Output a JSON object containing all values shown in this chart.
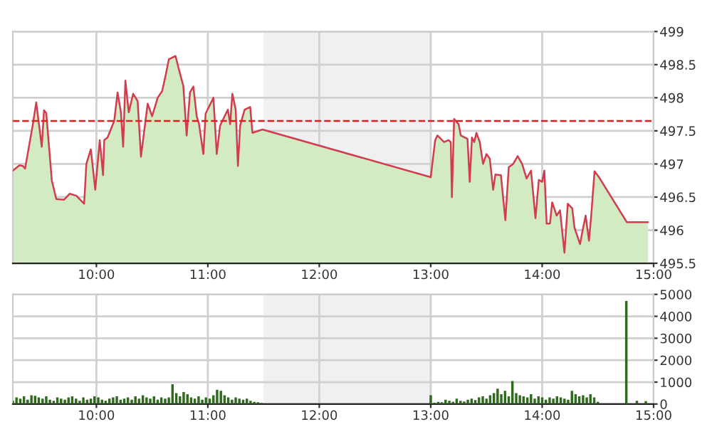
{
  "chart_data": [
    {
      "type": "area",
      "xlim": [
        9.25,
        15.0
      ],
      "xticks": [
        {
          "value": 10,
          "label": "10:00"
        },
        {
          "value": 11,
          "label": "11:00"
        },
        {
          "value": 12,
          "label": "12:00"
        },
        {
          "value": 13,
          "label": "13:00"
        },
        {
          "value": 14,
          "label": "14:00"
        },
        {
          "value": 15,
          "label": "15:00"
        }
      ],
      "ylim": [
        495.5,
        499
      ],
      "yticks": [
        495.5,
        496,
        496.5,
        497,
        497.5,
        498,
        498.5,
        499
      ],
      "grid": true,
      "legend": false,
      "bands": [
        {
          "axis": "x",
          "from": 11.5,
          "to": 13.0,
          "color": "#f0f0f0"
        }
      ],
      "ref_lines": [
        {
          "axis": "y",
          "value": 497.65,
          "color": "#e02020",
          "line_style": "dashed"
        }
      ],
      "series": [
        {
          "color": "#d23c50",
          "x": [
            9.25,
            9.31,
            9.34,
            9.36,
            9.43,
            9.46,
            9.51,
            9.53,
            9.55,
            9.6,
            9.64,
            9.71,
            9.76,
            9.82,
            9.89,
            9.91,
            9.95,
            9.99,
            10.03,
            10.06,
            10.07,
            10.1,
            10.16,
            10.19,
            10.22,
            10.24,
            10.26,
            10.29,
            10.33,
            10.37,
            10.4,
            10.46,
            10.5,
            10.55,
            10.59,
            10.62,
            10.65,
            10.71,
            10.74,
            10.78,
            10.81,
            10.84,
            10.87,
            10.9,
            10.92,
            10.96,
            10.98,
            11.05,
            11.08,
            11.11,
            11.15,
            11.18,
            11.2,
            11.22,
            11.25,
            11.27,
            11.29,
            11.33,
            11.38,
            11.4,
            11.49,
            13.0,
            13.04,
            13.06,
            13.12,
            13.16,
            13.18,
            13.19,
            13.21,
            13.25,
            13.27,
            13.33,
            13.35,
            13.37,
            13.39,
            13.41,
            13.44,
            13.47,
            13.5,
            13.53,
            13.56,
            13.58,
            13.63,
            13.67,
            13.7,
            13.74,
            13.78,
            13.82,
            13.86,
            13.9,
            13.94,
            13.97,
            14.0,
            14.02,
            14.04,
            14.07,
            14.09,
            14.13,
            14.16,
            14.2,
            14.23,
            14.27,
            14.29,
            14.34,
            14.36,
            14.39,
            14.42,
            14.44,
            14.47,
            14.51,
            14.76,
            14.95
          ],
          "values": [
            496.9,
            496.98,
            496.97,
            496.93,
            497.6,
            497.93,
            497.26,
            497.81,
            497.77,
            496.75,
            496.47,
            496.46,
            496.55,
            496.52,
            496.4,
            497.0,
            497.22,
            496.61,
            497.36,
            496.83,
            497.36,
            497.4,
            497.65,
            498.08,
            497.78,
            497.26,
            498.26,
            497.78,
            498.06,
            497.95,
            497.11,
            497.91,
            497.72,
            498.0,
            498.1,
            498.33,
            498.58,
            498.63,
            498.43,
            498.18,
            497.43,
            498.08,
            498.17,
            497.72,
            497.61,
            497.15,
            497.76,
            498.0,
            497.15,
            497.58,
            497.72,
            497.82,
            497.6,
            498.06,
            497.82,
            496.97,
            497.58,
            497.82,
            497.86,
            497.47,
            497.52,
            496.8,
            497.36,
            497.43,
            497.33,
            497.36,
            497.33,
            496.5,
            497.68,
            497.6,
            497.43,
            497.38,
            496.73,
            497.4,
            497.33,
            497.47,
            497.33,
            497.0,
            497.15,
            497.08,
            496.61,
            496.84,
            496.83,
            496.15,
            496.95,
            497.0,
            497.12,
            497.0,
            496.78,
            496.9,
            496.18,
            496.76,
            496.73,
            496.9,
            496.1,
            496.1,
            496.42,
            496.22,
            496.3,
            495.66,
            496.4,
            496.33,
            496.04,
            495.79,
            495.97,
            496.22,
            495.84,
            496.22,
            496.89,
            496.8,
            496.12,
            496.12
          ]
        }
      ]
    },
    {
      "type": "bar",
      "xlim": [
        9.25,
        15.0
      ],
      "xticks": [
        {
          "value": 10,
          "label": "10:00"
        },
        {
          "value": 11,
          "label": "11:00"
        },
        {
          "value": 12,
          "label": "12:00"
        },
        {
          "value": 13,
          "label": "13:00"
        },
        {
          "value": 14,
          "label": "14:00"
        },
        {
          "value": 15,
          "label": "15:00"
        }
      ],
      "ylim": [
        0,
        5000
      ],
      "yticks": [
        0,
        1000,
        2000,
        3000,
        4000,
        5000
      ],
      "grid": true,
      "legend": false,
      "bands": [
        {
          "axis": "x",
          "from": 11.5,
          "to": 13.0,
          "color": "#f0f0f0"
        }
      ],
      "series": [
        {
          "color": "#2f6a1e",
          "x": [
            9.25,
            9.283,
            9.317,
            9.35,
            9.383,
            9.417,
            9.45,
            9.483,
            9.517,
            9.55,
            9.583,
            9.617,
            9.65,
            9.683,
            9.717,
            9.75,
            9.783,
            9.817,
            9.85,
            9.883,
            9.917,
            9.95,
            9.983,
            10.017,
            10.05,
            10.083,
            10.117,
            10.15,
            10.183,
            10.217,
            10.25,
            10.283,
            10.317,
            10.35,
            10.383,
            10.417,
            10.45,
            10.483,
            10.517,
            10.55,
            10.583,
            10.617,
            10.65,
            10.683,
            10.717,
            10.75,
            10.783,
            10.817,
            10.85,
            10.883,
            10.917,
            10.95,
            10.983,
            11.017,
            11.05,
            11.083,
            11.117,
            11.15,
            11.183,
            11.217,
            11.25,
            11.283,
            11.317,
            11.35,
            11.383,
            11.417,
            11.45,
            11.483,
            13.0,
            13.033,
            13.067,
            13.1,
            13.133,
            13.167,
            13.2,
            13.233,
            13.267,
            13.3,
            13.333,
            13.367,
            13.4,
            13.433,
            13.467,
            13.5,
            13.533,
            13.567,
            13.6,
            13.633,
            13.667,
            13.7,
            13.733,
            13.767,
            13.8,
            13.833,
            13.867,
            13.9,
            13.933,
            13.967,
            14.0,
            14.033,
            14.067,
            14.1,
            14.133,
            14.167,
            14.2,
            14.233,
            14.267,
            14.3,
            14.333,
            14.367,
            14.4,
            14.433,
            14.467,
            14.5,
            14.755,
            14.85,
            14.93
          ],
          "values": [
            150,
            300,
            250,
            350,
            200,
            400,
            380,
            300,
            250,
            350,
            200,
            150,
            300,
            250,
            200,
            300,
            350,
            250,
            150,
            300,
            200,
            250,
            350,
            300,
            200,
            150,
            250,
            300,
            350,
            200,
            250,
            300,
            200,
            350,
            250,
            400,
            300,
            250,
            350,
            200,
            300,
            250,
            300,
            900,
            500,
            350,
            550,
            450,
            300,
            250,
            350,
            200,
            300,
            250,
            400,
            650,
            600,
            400,
            300,
            200,
            300,
            250,
            200,
            250,
            150,
            100,
            80,
            50,
            400,
            60,
            100,
            80,
            200,
            150,
            100,
            250,
            150,
            120,
            200,
            250,
            180,
            300,
            350,
            250,
            400,
            500,
            700,
            450,
            600,
            350,
            1050,
            500,
            400,
            350,
            300,
            450,
            250,
            350,
            300,
            200,
            300,
            250,
            350,
            300,
            250,
            200,
            600,
            450,
            350,
            400,
            300,
            450,
            300,
            100,
            4700,
            150,
            130
          ]
        }
      ]
    }
  ]
}
